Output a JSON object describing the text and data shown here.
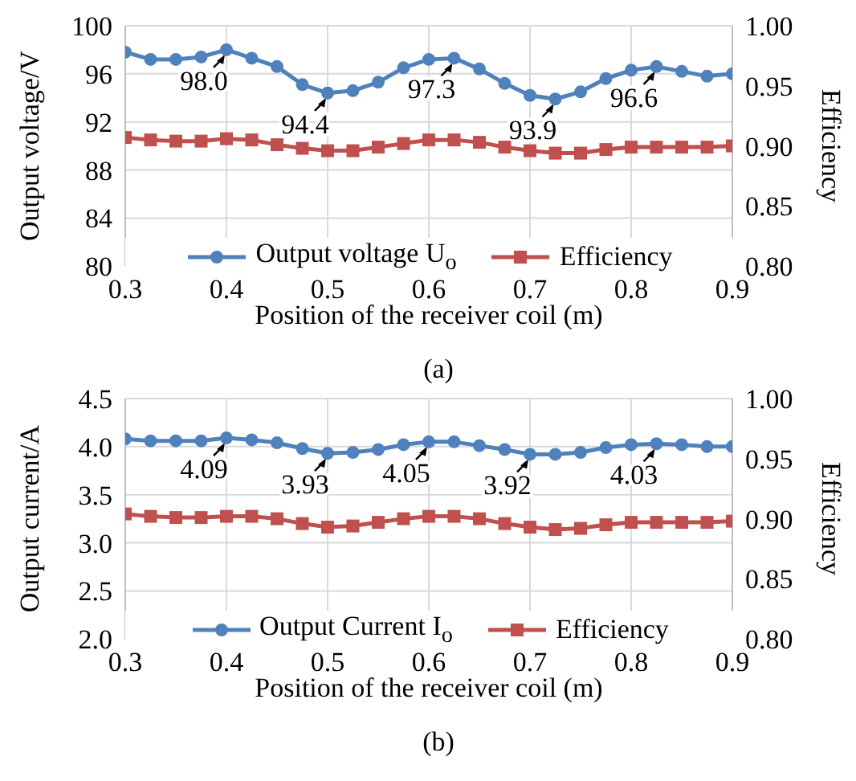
{
  "chart_data": [
    {
      "type": "line",
      "title": "(a)",
      "xlabel": "Position of the receiver coil (m)",
      "ylabel": "Output voltage/V",
      "y2label": "Efficiency",
      "x": [
        0.3,
        0.325,
        0.35,
        0.375,
        0.4,
        0.425,
        0.45,
        0.475,
        0.5,
        0.525,
        0.55,
        0.575,
        0.6,
        0.625,
        0.65,
        0.675,
        0.7,
        0.725,
        0.75,
        0.775,
        0.8,
        0.825,
        0.85,
        0.875,
        0.9
      ],
      "series": [
        {
          "name": "Output voltage U$_{o}$",
          "color": "#4f81bd",
          "marker": "circle",
          "values": [
            97.8,
            97.2,
            97.2,
            97.4,
            98.0,
            97.3,
            96.6,
            95.1,
            94.4,
            94.6,
            95.3,
            96.5,
            97.2,
            97.3,
            96.4,
            95.2,
            94.2,
            93.9,
            94.5,
            95.6,
            96.3,
            96.6,
            96.2,
            95.8,
            96.0
          ]
        },
        {
          "name": "Efficiency",
          "color": "#c0504d",
          "marker": "square",
          "axis": "y2",
          "values": [
            0.907,
            0.905,
            0.904,
            0.904,
            0.906,
            0.905,
            0.901,
            0.898,
            0.896,
            0.896,
            0.899,
            0.902,
            0.905,
            0.905,
            0.903,
            0.899,
            0.896,
            0.894,
            0.894,
            0.897,
            0.899,
            0.899,
            0.899,
            0.899,
            0.9
          ]
        }
      ],
      "xlim": [
        0.3,
        0.9
      ],
      "xticks": [
        0.3,
        0.4,
        0.5,
        0.6,
        0.7,
        0.8,
        0.9
      ],
      "ylim": [
        80,
        100
      ],
      "yticks": [
        80,
        84,
        88,
        92,
        96,
        100
      ],
      "y2lim": [
        0.8,
        1.0
      ],
      "y2ticks": [
        {
          "value": 0.8,
          "label": "0.80"
        },
        {
          "value": 0.85,
          "label": "0.85"
        },
        {
          "value": 0.9,
          "label": "0.90"
        },
        {
          "value": 0.95,
          "label": "0.95"
        },
        {
          "value": 1.0,
          "label": "1.00"
        }
      ],
      "grid": true,
      "legend": "bottom",
      "line_style": "solid",
      "annotations": [
        {
          "text": "98.0",
          "x": 0.4,
          "y": 98.0
        },
        {
          "text": "94.4",
          "x": 0.5,
          "y": 94.4
        },
        {
          "text": "97.3",
          "x": 0.625,
          "y": 97.3
        },
        {
          "text": "93.9",
          "x": 0.725,
          "y": 93.9
        },
        {
          "text": "96.6",
          "x": 0.825,
          "y": 96.6
        }
      ]
    },
    {
      "type": "line",
      "title": "(b)",
      "xlabel": "Position of the receiver coil (m)",
      "ylabel": "Output current/A",
      "y2label": "Efficiency",
      "x": [
        0.3,
        0.325,
        0.35,
        0.375,
        0.4,
        0.425,
        0.45,
        0.475,
        0.5,
        0.525,
        0.55,
        0.575,
        0.6,
        0.625,
        0.65,
        0.675,
        0.7,
        0.725,
        0.75,
        0.775,
        0.8,
        0.825,
        0.85,
        0.875,
        0.9
      ],
      "series": [
        {
          "name": "Output Current I$_{o}$",
          "color": "#4f81bd",
          "marker": "circle",
          "values": [
            4.08,
            4.06,
            4.06,
            4.06,
            4.09,
            4.07,
            4.04,
            3.98,
            3.93,
            3.94,
            3.97,
            4.02,
            4.05,
            4.05,
            4.01,
            3.97,
            3.92,
            3.92,
            3.94,
            3.99,
            4.02,
            4.03,
            4.02,
            4.0,
            4.0
          ]
        },
        {
          "name": "Efficiency",
          "color": "#c0504d",
          "marker": "square",
          "axis": "y2",
          "values": [
            0.904,
            0.902,
            0.901,
            0.901,
            0.902,
            0.902,
            0.9,
            0.896,
            0.893,
            0.894,
            0.897,
            0.9,
            0.902,
            0.902,
            0.9,
            0.896,
            0.893,
            0.891,
            0.892,
            0.895,
            0.897,
            0.897,
            0.897,
            0.897,
            0.898
          ]
        }
      ],
      "xlim": [
        0.3,
        0.9
      ],
      "xticks": [
        0.3,
        0.4,
        0.5,
        0.6,
        0.7,
        0.8,
        0.9
      ],
      "ylim": [
        2.0,
        4.5
      ],
      "yticks": [
        {
          "value": 2,
          "label": "2.0"
        },
        {
          "value": 2.5,
          "label": "2.5"
        },
        {
          "value": 3,
          "label": "3.0"
        },
        {
          "value": 3.5,
          "label": "3.5"
        },
        {
          "value": 4,
          "label": "4.0"
        },
        {
          "value": 4.5,
          "label": "4.5"
        }
      ],
      "y2lim": [
        0.8,
        1.0
      ],
      "y2ticks": [
        {
          "value": 0.8,
          "label": "0.80"
        },
        {
          "value": 0.85,
          "label": "0.85"
        },
        {
          "value": 0.9,
          "label": "0.90"
        },
        {
          "value": 0.95,
          "label": "0.95"
        },
        {
          "value": 1.0,
          "label": "1.00"
        }
      ],
      "grid": true,
      "legend": "bottom",
      "line_style": "solid",
      "annotations": [
        {
          "text": "4.09",
          "x": 0.4,
          "y": 4.09
        },
        {
          "text": "3.93",
          "x": 0.5,
          "y": 3.93
        },
        {
          "text": "4.05",
          "x": 0.6,
          "y": 4.05
        },
        {
          "text": "3.92",
          "x": 0.7,
          "y": 3.92
        },
        {
          "text": "4.03",
          "x": 0.825,
          "y": 4.03
        }
      ]
    }
  ]
}
